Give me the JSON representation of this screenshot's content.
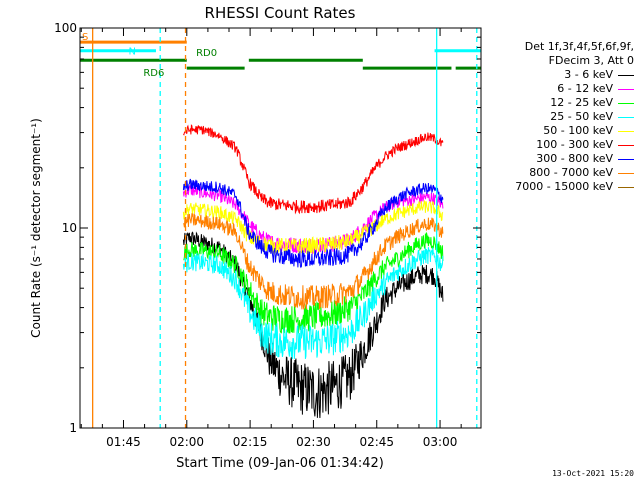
{
  "chart_data": {
    "type": "line",
    "title": "RHESSI Count Rates",
    "xlabel": "Start Time (09-Jan-06 01:34:42)",
    "ylabel": "Count Rate (s⁻¹ detector segment⁻¹)",
    "yscale": "log",
    "ylim": [
      1,
      100
    ],
    "xlim_minutes": [
      0,
      95
    ],
    "x_ticks": [
      "01:45",
      "02:00",
      "02:15",
      "02:30",
      "02:45",
      "03:00"
    ],
    "x_ticks_minutes": [
      10.3,
      25.3,
      40.3,
      55.3,
      70.3,
      85.3
    ],
    "y_ticks": [
      "1",
      "10",
      "100"
    ],
    "y_tick_values": [
      1,
      10,
      100
    ],
    "legend_header": [
      "Det 1f,3f,4f,5f,6f,9f,",
      "FDecim 3, Att 0"
    ],
    "series": [
      {
        "name": "3 - 6 keV",
        "color": "#000000",
        "x": [
          24.5,
          26,
          29,
          33,
          37,
          40,
          43,
          45,
          48,
          52,
          56,
          60,
          64,
          67,
          70,
          72,
          75,
          78,
          80,
          82,
          84,
          86
        ],
        "y": [
          8.5,
          9,
          8.5,
          8,
          6.5,
          4.5,
          3,
          2.2,
          1.8,
          1.6,
          1.5,
          1.6,
          1.8,
          2.4,
          3.3,
          4.3,
          5,
          5.5,
          5.8,
          5.9,
          5.8,
          4.5
        ]
      },
      {
        "name": "6 - 12 keV",
        "color": "#ff00ff",
        "x": [
          24.5,
          26,
          29,
          33,
          37,
          40,
          43,
          45,
          48,
          52,
          56,
          60,
          64,
          67,
          70,
          72,
          75,
          78,
          80,
          82,
          84,
          86
        ],
        "y": [
          15,
          15.5,
          15,
          14.5,
          13,
          10.5,
          9,
          8.5,
          8.3,
          8.2,
          8.2,
          8.3,
          8.7,
          10,
          11.5,
          12.5,
          13.5,
          13.8,
          14,
          14.3,
          14,
          13
        ]
      },
      {
        "name": "12 - 25 keV",
        "color": "#00ff00",
        "x": [
          24.5,
          26,
          29,
          33,
          37,
          40,
          43,
          45,
          48,
          52,
          56,
          60,
          64,
          67,
          70,
          72,
          75,
          78,
          80,
          82,
          84,
          86
        ],
        "y": [
          7.5,
          7.8,
          7.7,
          7.5,
          6.5,
          5,
          3.8,
          3.6,
          3.5,
          3.5,
          3.6,
          3.7,
          4,
          4.6,
          5.6,
          6.3,
          7,
          7.8,
          8.3,
          8.7,
          8.5,
          7.5
        ]
      },
      {
        "name": "25 - 50 keV",
        "color": "#00ffff",
        "x": [
          24.5,
          26,
          29,
          33,
          37,
          40,
          43,
          45,
          48,
          52,
          56,
          60,
          64,
          67,
          70,
          72,
          75,
          78,
          80,
          82,
          84,
          86
        ],
        "y": [
          6.5,
          6.8,
          6.7,
          6.5,
          5.5,
          3.9,
          3,
          2.8,
          2.7,
          2.7,
          2.7,
          2.8,
          3,
          3.6,
          4.6,
          5.2,
          6,
          6.6,
          7,
          7.3,
          7.2,
          6.5
        ]
      },
      {
        "name": "50 - 100 keV",
        "color": "#ffff00",
        "x": [
          24.5,
          26,
          29,
          33,
          37,
          40,
          43,
          45,
          48,
          52,
          56,
          60,
          64,
          67,
          70,
          72,
          75,
          78,
          80,
          82,
          84,
          86
        ],
        "y": [
          12,
          12.5,
          12.3,
          12,
          11,
          9,
          8.4,
          8.2,
          8.1,
          8.1,
          8.2,
          8.3,
          8.6,
          9.3,
          10.2,
          11,
          11.7,
          12.3,
          12.6,
          12.8,
          12.5,
          11.5
        ]
      },
      {
        "name": "100 - 300 keV",
        "color": "#ff0000",
        "x": [
          24.5,
          26,
          29,
          33,
          37,
          40,
          43,
          45,
          48,
          52,
          56,
          60,
          64,
          67,
          70,
          72,
          75,
          78,
          80,
          82,
          84,
          86
        ],
        "y": [
          30,
          31,
          31,
          29,
          25,
          17,
          14,
          13.3,
          13,
          12.8,
          12.8,
          13,
          13.5,
          16,
          20,
          22.5,
          25,
          26.5,
          27.5,
          28.5,
          28,
          26
        ]
      },
      {
        "name": "300 - 800 keV",
        "color": "#0000ff",
        "x": [
          24.5,
          26,
          29,
          33,
          37,
          40,
          43,
          45,
          48,
          52,
          56,
          60,
          64,
          67,
          70,
          72,
          75,
          78,
          80,
          82,
          84,
          86
        ],
        "y": [
          16,
          16.5,
          16.2,
          16,
          14.5,
          9.5,
          8,
          7.5,
          7.2,
          7,
          7,
          7.1,
          7.4,
          8.5,
          10.5,
          12.3,
          14,
          15,
          15.5,
          15.8,
          15.5,
          14
        ]
      },
      {
        "name": "800 - 7000 keV",
        "color": "#ff8000",
        "x": [
          24.5,
          26,
          29,
          33,
          37,
          40,
          43,
          45,
          48,
          52,
          56,
          60,
          64,
          67,
          70,
          72,
          75,
          78,
          80,
          82,
          84,
          86
        ],
        "y": [
          10.5,
          11,
          10.8,
          10.5,
          9.5,
          6.5,
          5.3,
          4.8,
          4.6,
          4.5,
          4.5,
          4.6,
          4.8,
          5.6,
          7,
          8,
          9,
          9.7,
          10.2,
          10.5,
          10.3,
          9.5
        ]
      },
      {
        "name": "7000 - 15000 keV",
        "color": "#996600",
        "x": [],
        "y": []
      }
    ],
    "attenuator_bars": [
      {
        "label": "S",
        "color": "#ff8000",
        "segments": [
          [
            0,
            25.3
          ]
        ],
        "level": 85
      },
      {
        "label": "N",
        "color": "#00ffff",
        "segments": [
          [
            0,
            18
          ],
          [
            84,
            95
          ]
        ],
        "level": 77
      },
      {
        "label": "RD0",
        "color": "#008000",
        "segments": [
          [
            0,
            25.3
          ],
          [
            40,
            67
          ]
        ],
        "level": 69
      },
      {
        "label": "RD6",
        "color": "#008000",
        "segments": [
          [
            25.3,
            39
          ],
          [
            67,
            88
          ],
          [
            89,
            95
          ]
        ],
        "level": 63
      }
    ],
    "vertical_markers": [
      {
        "x": 3,
        "color": "#ff8000",
        "style": "solid"
      },
      {
        "x": 19,
        "color": "#00ffff",
        "style": "dashed"
      },
      {
        "x": 25,
        "color": "#ff8000",
        "style": "dashed"
      },
      {
        "x": 84.5,
        "color": "#00ffff",
        "style": "solid"
      },
      {
        "x": 94,
        "color": "#00ffff",
        "style": "dashed"
      }
    ],
    "grid": false,
    "legend_position": "right"
  },
  "footer_date": "13-Oct-2021 15:20"
}
